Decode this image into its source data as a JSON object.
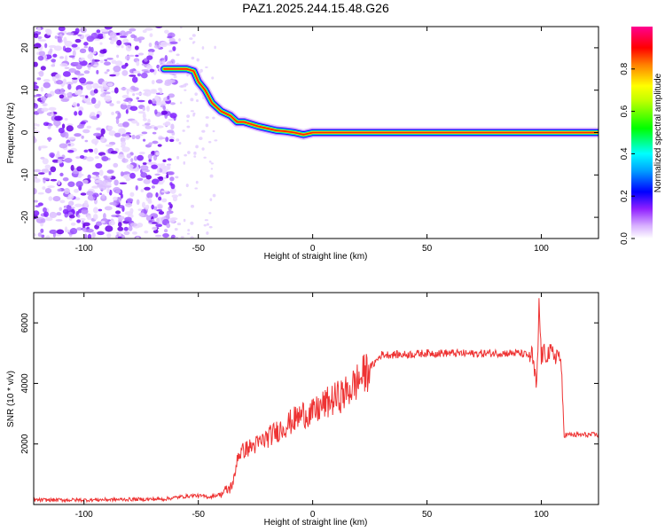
{
  "figure_title": "PAZ1.2025.244.15.48.G26",
  "chart_data": [
    {
      "type": "heatmap",
      "title": "PAZ1.2025.244.15.48.G26",
      "xlabel": "Height of straight line (km)",
      "ylabel": "Frequency (Hz)",
      "xlim": [
        -122,
        125
      ],
      "ylim": [
        -25,
        25
      ],
      "xticks": [
        -100,
        -50,
        0,
        50,
        100
      ],
      "yticks": [
        -20,
        -10,
        0,
        10,
        20
      ],
      "colorbar": {
        "label": "Normalized spectral amplitude",
        "range": [
          0,
          1
        ],
        "ticks": [
          0.0,
          0.2,
          0.4,
          0.6,
          0.8
        ],
        "colormap": [
          "#ffffff",
          "#c080ff",
          "#8000ff",
          "#0000ff",
          "#00ffff",
          "#00ff00",
          "#ffff00",
          "#ff8000",
          "#ff0000",
          "#ff00ff"
        ]
      },
      "ridge": {
        "x": [
          -65,
          -60,
          -55,
          -52,
          -50,
          -47,
          -44,
          -40,
          -36,
          -33,
          -30,
          -27,
          -24,
          -20,
          -16,
          -12,
          -8,
          -4,
          0,
          5,
          10,
          20,
          30,
          50,
          80,
          100,
          110,
          125
        ],
        "y": [
          15,
          15,
          15,
          14.5,
          12,
          10,
          7,
          5,
          4,
          2.5,
          2.5,
          2,
          1.5,
          1,
          0.5,
          0.3,
          0,
          -0.5,
          0,
          0,
          0,
          0,
          0,
          0,
          0,
          0,
          0,
          0
        ]
      }
    },
    {
      "type": "line",
      "title": "",
      "xlabel": "Height of straight line (km)",
      "ylabel": "SNR (10 * v/v)",
      "xlim": [
        -122,
        125
      ],
      "ylim": [
        0,
        7000
      ],
      "xticks": [
        -100,
        -50,
        0,
        50,
        100
      ],
      "yticks": [
        2000,
        4000,
        6000
      ],
      "color": "#ee3333",
      "series": [
        {
          "name": "SNR",
          "x": [
            -122,
            -100,
            -80,
            -65,
            -58,
            -52,
            -45,
            -40,
            -36,
            -34,
            -33,
            -30,
            -27,
            -24,
            -20,
            -16,
            -12,
            -8,
            -4,
            0,
            5,
            10,
            15,
            20,
            25,
            30,
            40,
            50,
            60,
            70,
            80,
            90,
            96,
            98,
            99,
            100,
            102,
            105,
            108,
            109,
            110,
            112,
            115,
            120,
            125
          ],
          "y": [
            150,
            150,
            170,
            180,
            250,
            300,
            250,
            350,
            550,
            900,
            1600,
            1800,
            1900,
            2000,
            2200,
            2400,
            2600,
            2800,
            3000,
            3000,
            3300,
            3500,
            3700,
            4100,
            4500,
            4950,
            4950,
            5000,
            5000,
            4980,
            5000,
            5000,
            4900,
            3800,
            6600,
            4900,
            5000,
            4950,
            4950,
            4000,
            2300,
            2300,
            2300,
            2300,
            2300
          ]
        }
      ]
    }
  ]
}
